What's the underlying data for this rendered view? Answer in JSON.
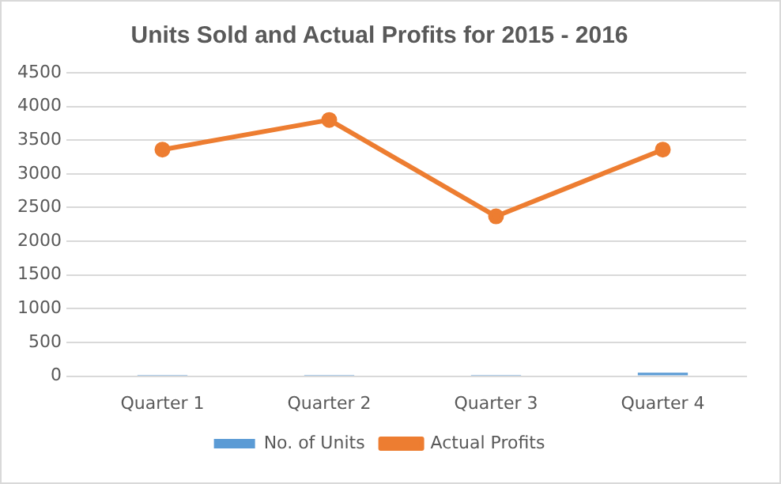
{
  "chart_data": {
    "type": "bar",
    "title": "Units Sold and Actual Profits for 2015 - 2016",
    "categories": [
      "Quarter 1",
      "Quarter 2",
      "Quarter 3",
      "Quarter 4"
    ],
    "series": [
      {
        "name": "No. of Units",
        "color": "#5b9bd5",
        "values": [
          20,
          20,
          20,
          50
        ]
      },
      {
        "name": "Actual Profits",
        "type": "line",
        "color": "#ed7d31",
        "values": [
          3360,
          3800,
          2370,
          3360
        ]
      }
    ],
    "ylim": [
      0,
      4500
    ],
    "yticks": [
      0,
      500,
      1000,
      1500,
      2000,
      2500,
      3000,
      3500,
      4000,
      4500
    ],
    "grid": "y",
    "legend": "bottom",
    "marker": "circle"
  }
}
